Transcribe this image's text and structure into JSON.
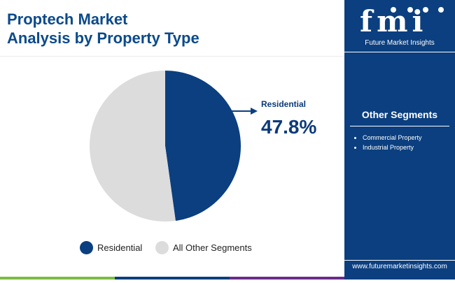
{
  "title": {
    "line1": "Proptech Market",
    "line2": "Analysis by Property Type"
  },
  "colors": {
    "residential": "#0b3f7f",
    "others": "#dcdcdc",
    "sidebar": "#0b3f7f",
    "bar_green": "#7dbb42",
    "bar_blue": "#0b3f7f",
    "bar_purple": "#6a2c8b"
  },
  "callout": {
    "label": "Residential",
    "value": "47.8%"
  },
  "chart_data": {
    "type": "pie",
    "title": "Proptech Market Analysis by Property Type",
    "slices": [
      {
        "label": "Residential",
        "value": 47.8,
        "color": "#0b3f7f"
      },
      {
        "label": "All Other Segments",
        "value": 52.2,
        "color": "#dcdcdc"
      }
    ],
    "legend": [
      "Residential",
      "All Other Segments"
    ],
    "legend_position": "bottom",
    "annotations": [
      {
        "label": "Residential",
        "value": "47.8%"
      }
    ]
  },
  "legend": {
    "items": [
      {
        "label": "Residential",
        "color": "#0b3f7f"
      },
      {
        "label": "All Other Segments",
        "color": "#dcdcdc"
      }
    ]
  },
  "sidebar": {
    "logo_mark": "fmi",
    "logo_text": "Future Market Insights",
    "other_segments_title": "Other Segments",
    "other_segments": [
      "Commercial Property",
      "Industrial Property"
    ],
    "url": "www.futuremarketinsights.com"
  }
}
